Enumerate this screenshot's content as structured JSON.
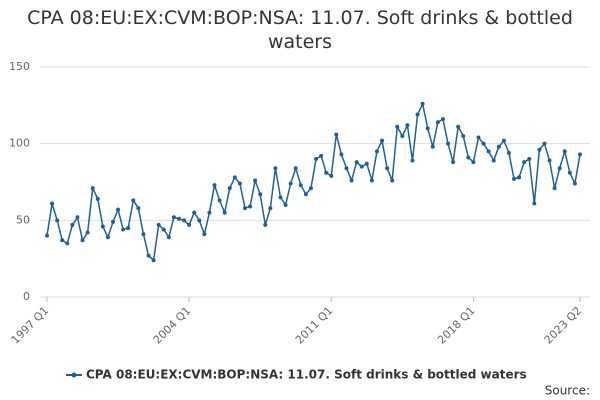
{
  "chart_data": {
    "type": "line",
    "title": "CPA 08:EU:EX:CVM:BOP:NSA: 11.07. Soft drinks & bottled waters",
    "source": "Source:",
    "categories": [
      "1997 Q1",
      null,
      null,
      null,
      null,
      null,
      null,
      null,
      null,
      null,
      null,
      null,
      null,
      null,
      null,
      null,
      null,
      null,
      null,
      null,
      null,
      null,
      null,
      null,
      null,
      null,
      null,
      null,
      "2004 Q1",
      null,
      null,
      null,
      null,
      null,
      null,
      null,
      null,
      null,
      null,
      null,
      null,
      null,
      null,
      null,
      null,
      null,
      null,
      null,
      null,
      null,
      null,
      null,
      null,
      null,
      null,
      null,
      "2011 Q1",
      null,
      null,
      null,
      null,
      null,
      null,
      null,
      null,
      null,
      null,
      null,
      null,
      null,
      null,
      null,
      null,
      null,
      null,
      null,
      null,
      null,
      null,
      null,
      null,
      null,
      null,
      null,
      "2018 Q1",
      null,
      null,
      null,
      null,
      null,
      null,
      null,
      null,
      null,
      null,
      null,
      null,
      null,
      null,
      null,
      null,
      null,
      null,
      null,
      null,
      "2023 Q2"
    ],
    "series": [
      {
        "name": "CPA 08:EU:EX:CVM:BOP:NSA: 11.07. Soft drinks & bottled waters",
        "color": "#206095",
        "values": [
          40,
          61,
          50,
          37,
          35,
          47,
          52,
          37,
          42,
          71,
          64,
          46,
          39,
          49,
          57,
          44,
          45,
          63,
          58,
          41,
          27,
          24,
          47,
          44,
          39,
          52,
          51,
          50,
          47,
          55,
          50,
          41,
          55,
          73,
          63,
          55,
          71,
          78,
          74,
          58,
          59,
          76,
          67,
          47,
          58,
          84,
          65,
          60,
          74,
          84,
          73,
          67,
          71,
          90,
          92,
          81,
          79,
          106,
          93,
          84,
          76,
          88,
          85,
          87,
          76,
          95,
          102,
          84,
          76,
          111,
          105,
          112,
          89,
          119,
          126,
          110,
          98,
          114,
          116,
          100,
          88,
          111,
          105,
          91,
          88,
          104,
          100,
          95,
          89,
          98,
          102,
          94,
          77,
          78,
          88,
          90,
          61,
          96,
          100,
          89,
          71,
          84,
          95,
          81,
          74,
          93
        ]
      }
    ],
    "ylim": [
      0,
      150
    ],
    "yticks": [
      0,
      50,
      100,
      150
    ],
    "grid": true
  }
}
